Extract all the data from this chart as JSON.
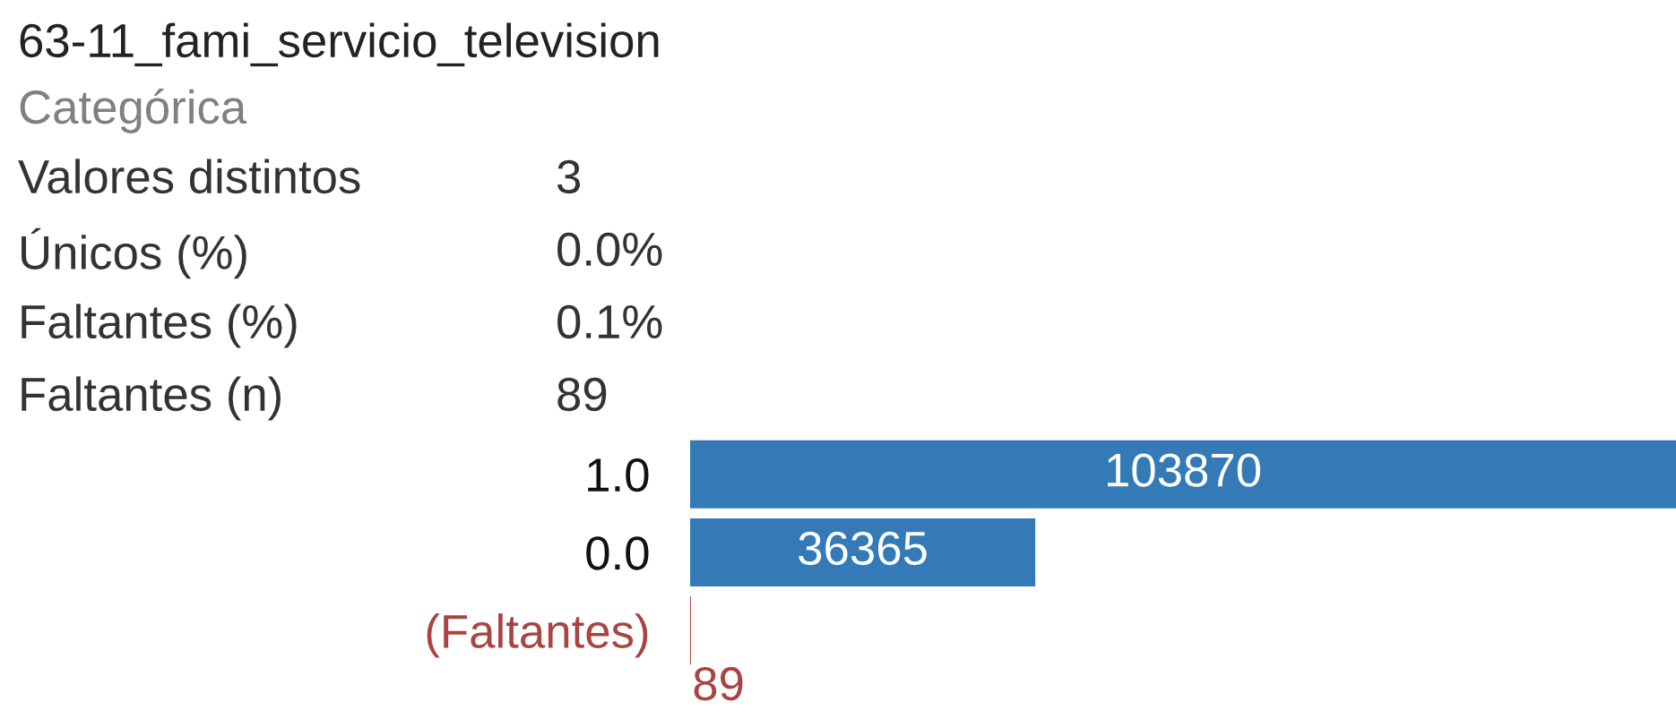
{
  "chart_data": {
    "type": "bar",
    "orientation": "horizontal",
    "title": "63-11_fami_servicio_television",
    "subtitle": "Categórica",
    "annotations": [
      "Valores distintos",
      "3",
      "Únicos (%)",
      "0.0%",
      "Faltantes (%)",
      "0.1%",
      "Faltantes (n)",
      "89"
    ],
    "categories": [
      "1.0",
      "0.0",
      "(Faltantes)"
    ],
    "values": [
      103870,
      36365,
      89
    ],
    "colors": [
      "#337ab7",
      "#337ab7",
      "#a94442"
    ],
    "data_labels": true
  }
}
